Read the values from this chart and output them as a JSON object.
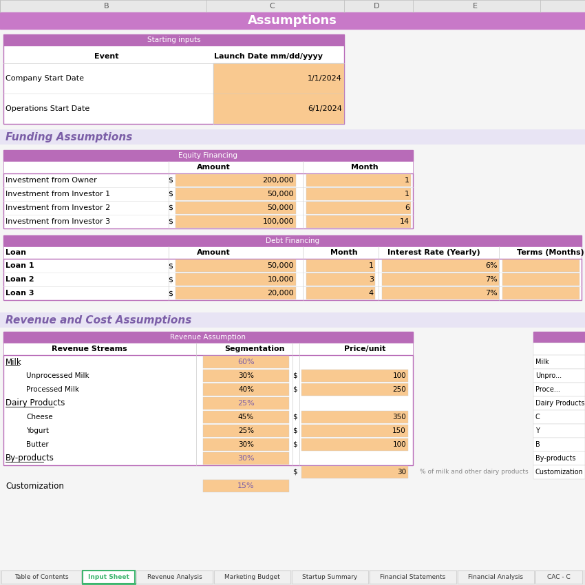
{
  "title": "Assumptions",
  "title_bg": "#c879c8",
  "title_color": "#ffffff",
  "col_header_bg": "#e8e8e8",
  "col_headers": [
    [
      "B",
      155
    ],
    [
      "C",
      395
    ],
    [
      "D",
      547
    ],
    [
      "E",
      690
    ]
  ],
  "col_dividers": [
    0,
    300,
    500,
    600,
    785,
    850
  ],
  "purple_header_bg": "#b86bb8",
  "purple_header_color": "#ffffff",
  "light_purple_section_bg": "#e8e4f4",
  "orange_input_bg": "#f9c990",
  "table_border": "#b86bb8",
  "section_headers": {
    "starting_inputs": "Starting inputs",
    "funding_assumptions": "Funding Assumptions",
    "equity_financing": "Equity Financing",
    "debt_financing": "Debt Financing",
    "revenue_cost": "Revenue and Cost Assumptions",
    "revenue_assumption": "Revenue Assumption"
  },
  "starting_inputs_rows": [
    [
      "Company Start Date",
      "1/1/2024"
    ],
    [
      "Operations Start Date",
      "6/1/2024"
    ]
  ],
  "equity_rows": [
    [
      "Investment from Owner",
      "$",
      "200,000",
      "1"
    ],
    [
      "Investment from Investor 1",
      "$",
      "50,000",
      "1"
    ],
    [
      "Investment from Investor 2",
      "$",
      "50,000",
      "6"
    ],
    [
      "Investment from Investor 3",
      "$",
      "100,000",
      "14"
    ]
  ],
  "debt_rows": [
    [
      "Loan 1",
      "$",
      "50,000",
      "1",
      "6%"
    ],
    [
      "Loan 2",
      "$",
      "10,000",
      "3",
      "7%"
    ],
    [
      "Loan 3",
      "$",
      "20,000",
      "4",
      "7%"
    ]
  ],
  "revenue_sections": [
    {
      "category": "Milk",
      "seg_pct": "60%",
      "underline": true,
      "items": [
        [
          "Unprocessed Milk",
          "30%",
          "$",
          "100"
        ],
        [
          "Processed Milk",
          "40%",
          "$",
          "250"
        ]
      ]
    },
    {
      "category": "Dairy Products",
      "seg_pct": "25%",
      "underline": true,
      "items": [
        [
          "Cheese",
          "45%",
          "$",
          "350"
        ],
        [
          "Yogurt",
          "25%",
          "$",
          "150"
        ],
        [
          "Butter",
          "30%",
          "$",
          "100"
        ]
      ]
    },
    {
      "category": "By-products",
      "seg_pct": "30%",
      "underline": true,
      "items": [
        [
          "",
          "",
          "$",
          "30"
        ]
      ],
      "note": "% of milk and other dairy products"
    },
    {
      "category": "Customization",
      "seg_pct": "15%",
      "underline": false,
      "items": []
    }
  ],
  "tab_names": [
    "Table of Contents",
    "Input Sheet",
    "Revenue Analysis",
    "Marketing Budget",
    "Startup Summary",
    "Financial Statements",
    "Financial Analysis",
    "CAC - C"
  ],
  "active_tab": "Input Sheet",
  "active_tab_color": "#3db56e",
  "tab_bg": "#f0f0f0",
  "tab_border": "#cccccc",
  "right_panel_items": [
    "Milk",
    "Unpro...",
    "Proce...",
    "Dairy Products",
    "C",
    "Y",
    "B",
    "By-products",
    "Customization"
  ]
}
